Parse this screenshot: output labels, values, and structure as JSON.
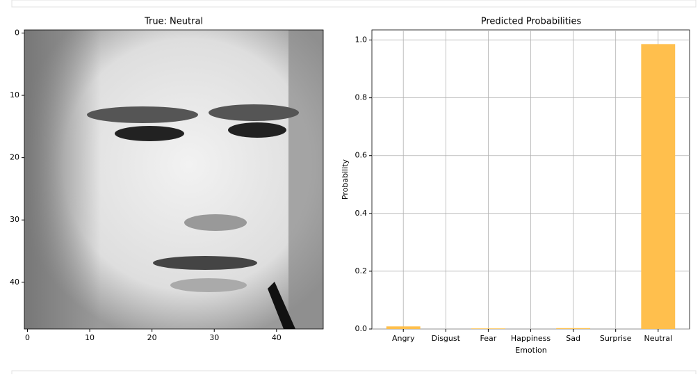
{
  "chart_data": [
    {
      "type": "image",
      "title": "True: Neutral",
      "xlim": [
        -0.5,
        47.5
      ],
      "ylim": [
        47.5,
        -0.5
      ],
      "xticks": [
        0,
        10,
        20,
        30,
        40
      ],
      "yticks": [
        0,
        10,
        20,
        30,
        40
      ]
    },
    {
      "type": "bar",
      "title": "Predicted Probabilities",
      "xlabel": "Emotion",
      "ylabel": "Probability",
      "categories": [
        "Angry",
        "Disgust",
        "Fear",
        "Happiness",
        "Sad",
        "Surprise",
        "Neutral"
      ],
      "values": [
        0.009,
        0.0,
        0.002,
        0.0,
        0.003,
        0.0,
        0.986
      ],
      "color": "#ffbf4d",
      "ylim": [
        0,
        1.035
      ],
      "yticks": [
        {
          "value": 0,
          "label": "0.0"
        },
        0.2,
        0.4,
        0.6,
        0.8,
        {
          "value": 1,
          "label": "1.0"
        }
      ],
      "grid": true
    }
  ]
}
